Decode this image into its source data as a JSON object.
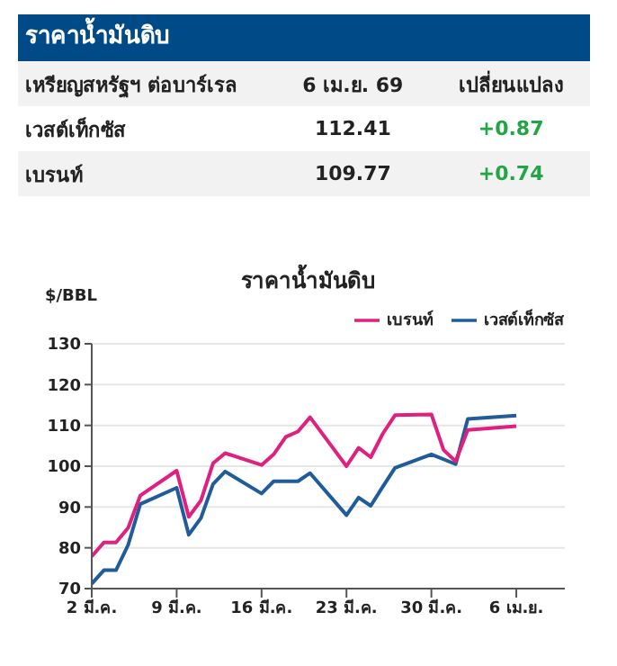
{
  "chart_data": [
    {
      "type": "other",
      "title": "ราคาน้ำมันดิบ",
      "annotations": [
        "เหรียญสหรัฐฯ ต่อบาร์เรล",
        "6 เม.ย. 69",
        "เปลี่ยนแปลง",
        "เวสต์เท็กซัส",
        "112.41",
        "+0.87",
        "เบรนท์",
        "109.77",
        "+0.74"
      ]
    },
    {
      "type": "line",
      "title": "ราคาน้ำมันดิบ",
      "ylabel": "$/BBL",
      "legend": "top right",
      "grid": "y",
      "marker": "none",
      "line_style": "solid",
      "xlim": [
        "--03-02",
        "--04-10"
      ],
      "xticks": [
        {
          "value": "--03-02",
          "label": "2 มี.ค."
        },
        {
          "value": "--03-09",
          "label": "9 มี.ค."
        },
        {
          "value": "--03-16",
          "label": "16 มี.ค."
        },
        {
          "value": "--03-23",
          "label": "23 มี.ค."
        },
        {
          "value": "--03-30",
          "label": "30 มี.ค."
        },
        {
          "value": "--04-06",
          "label": "6 เม.ย."
        }
      ],
      "ylim": [
        70,
        130
      ],
      "yticks": [
        70,
        80,
        90,
        100,
        110,
        120,
        130
      ],
      "x": [
        "--03-02",
        "--03-03",
        "--03-04",
        "--03-05",
        "--03-06",
        "--03-09",
        "--03-10",
        "--03-11",
        "--03-12",
        "--03-13",
        "--03-16",
        "--03-17",
        "--03-18",
        "--03-19",
        "--03-20",
        "--03-23",
        "--03-24",
        "--03-25",
        "--03-26",
        "--03-27",
        "--03-30",
        "--03-31",
        "--04-01",
        "--04-02",
        "--04-06"
      ],
      "series": [
        {
          "name": "เวสต์เท็กซัส",
          "color": "#1f5c99",
          "values": [
            71.2,
            74.5,
            74.5,
            80.7,
            90.7,
            94.7,
            83.2,
            87.3,
            95.6,
            98.7,
            93.3,
            96.3,
            null,
            96.3,
            98.3,
            88,
            92.3,
            90.3,
            95,
            99.6,
            102.9,
            null,
            100.5,
            111.6,
            112.4
          ]
        },
        {
          "name": "เบรนท์",
          "color": "#e0207f",
          "values": [
            77.9,
            81.3,
            81.3,
            84.9,
            92.8,
            98.9,
            87.6,
            91.6,
            100.7,
            103.2,
            100.3,
            102.9,
            107.2,
            108.5,
            112,
            100,
            104.5,
            102.2,
            108,
            112.5,
            112.7,
            104,
            101.2,
            108.9,
            109.8
          ]
        }
      ]
    }
  ]
}
